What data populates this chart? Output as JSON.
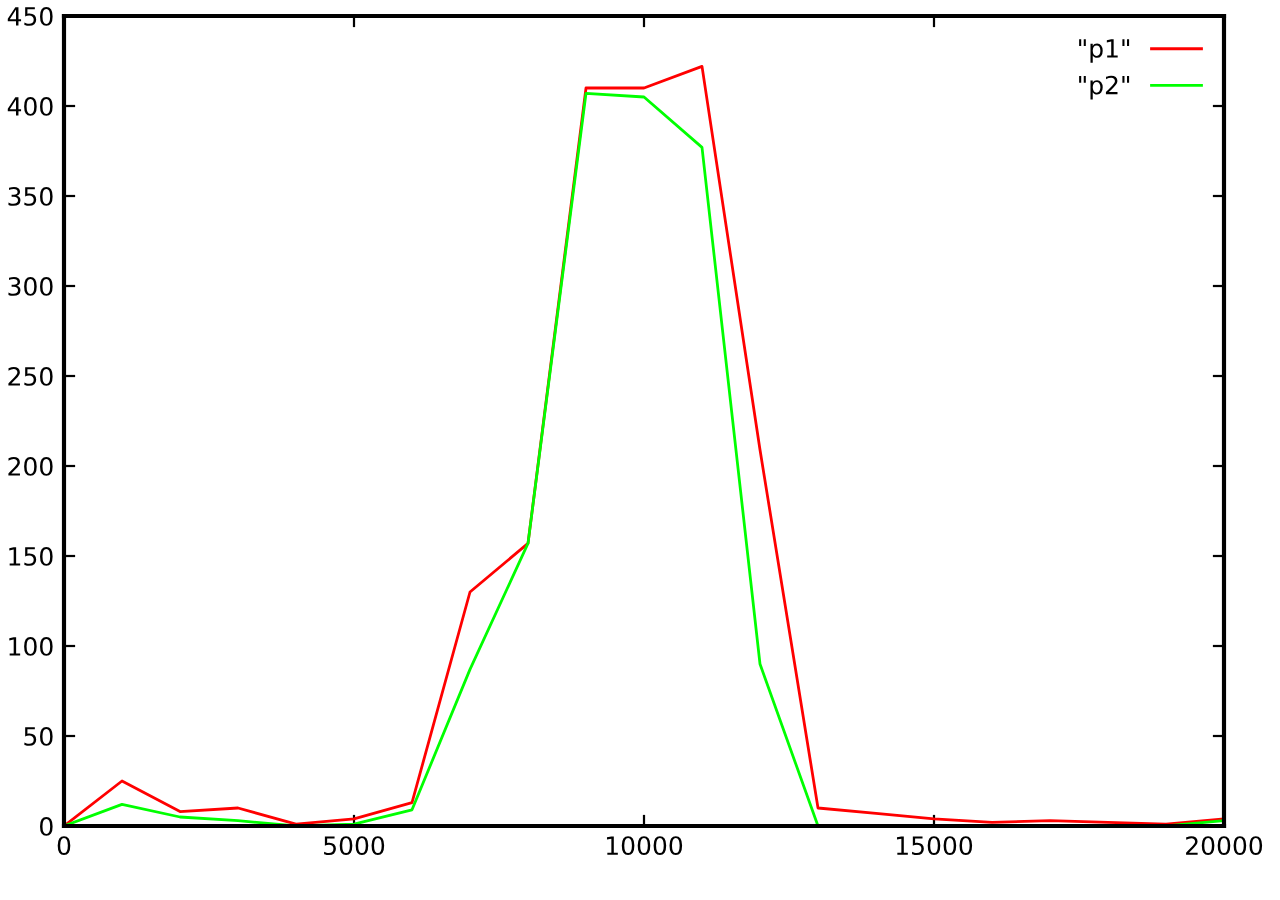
{
  "chart_data": {
    "type": "line",
    "x": [
      0,
      1000,
      2000,
      3000,
      4000,
      5000,
      6000,
      7000,
      8000,
      9000,
      10000,
      11000,
      12000,
      13000,
      14000,
      15000,
      16000,
      17000,
      18000,
      19000,
      20000
    ],
    "series": [
      {
        "name": "\"p1\"",
        "color": "#ff0000",
        "values": [
          0,
          25,
          8,
          10,
          1,
          4,
          13,
          130,
          157,
          410,
          410,
          422,
          209,
          10,
          7,
          4,
          2,
          3,
          2,
          1,
          4
        ]
      },
      {
        "name": "\"p2\"",
        "color": "#00ff00",
        "values": [
          0,
          12,
          5,
          3,
          0,
          1,
          9,
          87,
          157,
          407,
          405,
          377,
          90,
          0,
          0,
          0,
          0,
          0,
          0,
          0,
          3
        ]
      }
    ],
    "xlim": [
      0,
      20000
    ],
    "ylim": [
      0,
      450
    ],
    "xticks": [
      0,
      5000,
      10000,
      15000,
      20000
    ],
    "yticks": [
      0,
      50,
      100,
      150,
      200,
      250,
      300,
      350,
      400,
      450
    ],
    "grid": false,
    "legend": "top right",
    "marker": "none",
    "line_style": "solid"
  }
}
